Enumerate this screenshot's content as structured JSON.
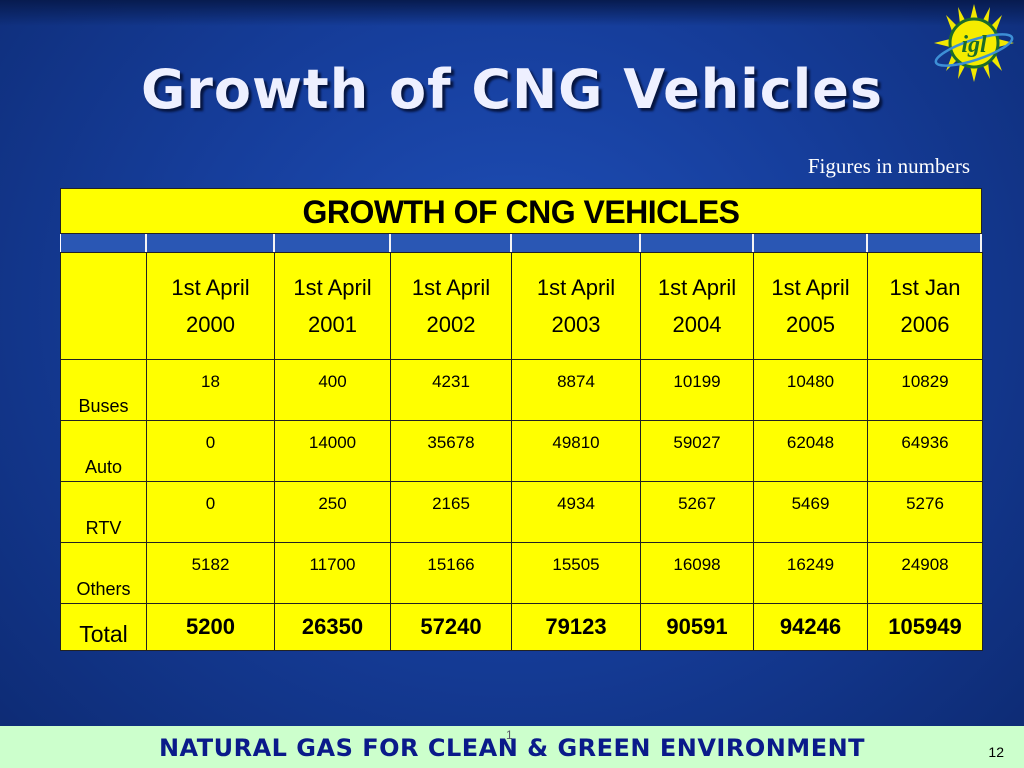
{
  "slide": {
    "title": "Growth of CNG Vehicles",
    "subnote": "Figures in numbers",
    "footer_text": "NATURAL GAS FOR CLEAN & GREEN ENVIRONMENT",
    "footer_mark": "1",
    "page_number": "12",
    "logo_text": "igl"
  },
  "table": {
    "title": "GROWTH OF CNG VEHICLES",
    "header_corner": "",
    "columns": [
      [
        "1st April",
        "2000"
      ],
      [
        "1st April",
        "2001"
      ],
      [
        "1st April",
        "2002"
      ],
      [
        "1st April",
        "2003"
      ],
      [
        "1st April",
        "2004"
      ],
      [
        "1st April",
        "2005"
      ],
      [
        "1st Jan",
        "2006"
      ]
    ],
    "rows": [
      {
        "label": "Buses",
        "values": [
          "18",
          "400",
          "4231",
          "8874",
          "10199",
          "10480",
          "10829"
        ]
      },
      {
        "label": "Auto",
        "values": [
          "0",
          "14000",
          "35678",
          "49810",
          "59027",
          "62048",
          "64936"
        ]
      },
      {
        "label": "RTV",
        "values": [
          "0",
          "250",
          "2165",
          "4934",
          "5267",
          "5469",
          "5276"
        ]
      },
      {
        "label": "Others",
        "values": [
          "5182",
          "11700",
          "15166",
          "15505",
          "16098",
          "16249",
          "24908"
        ]
      }
    ],
    "total": {
      "label": "Total",
      "values": [
        "5200",
        "26350",
        "57240",
        "79123",
        "90591",
        "94246",
        "105949"
      ]
    }
  },
  "colors": {
    "background": "#163e9c",
    "table_fill": "#ffff00",
    "footer_fill": "#ccffcc",
    "footer_text": "#0a1a8a"
  }
}
